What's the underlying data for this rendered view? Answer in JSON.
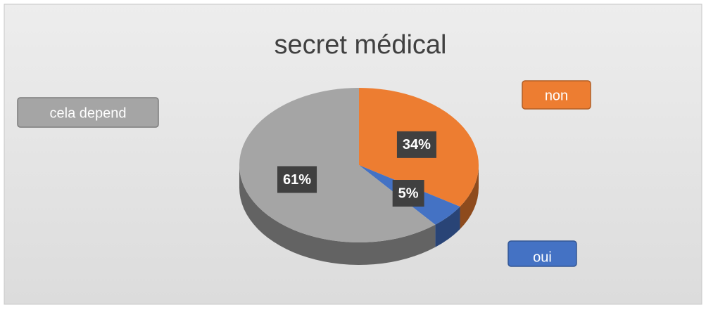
{
  "chart_data": {
    "type": "pie",
    "title": "secret médical",
    "categories": [
      "non",
      "oui",
      "cela depend"
    ],
    "values": [
      34,
      5,
      61
    ],
    "value_labels": [
      "34%",
      "5%",
      "61%"
    ],
    "colors": [
      "#ED7D31",
      "#4472C4",
      "#A5A5A5"
    ]
  }
}
